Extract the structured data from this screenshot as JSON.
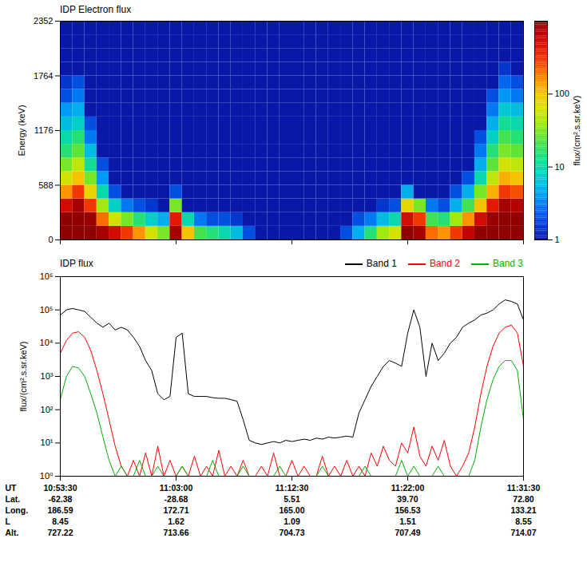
{
  "chart_data": [
    {
      "type": "heatmap",
      "title": "IDP Electron flux",
      "ylabel": "Energy (keV)",
      "xlim": [
        "10:53:30",
        "11:31:30"
      ],
      "xticks": [
        "10:53:30",
        "11:03:00",
        "11:12:30",
        "11:22:00",
        "11:31:30"
      ],
      "ylim": [
        0,
        2352
      ],
      "yticks": [
        0,
        588,
        1176,
        1764,
        2352
      ],
      "tick_labels": "y",
      "x_bins": [
        "10:53:30",
        "10:54:30",
        "10:55:30",
        "10:56:30",
        "10:57:30",
        "10:58:30",
        "10:59:30",
        "11:00:30",
        "11:01:30",
        "11:02:30",
        "11:03:30",
        "11:04:30",
        "11:05:30",
        "11:06:30",
        "11:07:30",
        "11:08:30",
        "11:09:30",
        "11:10:30",
        "11:11:30",
        "11:12:30",
        "11:13:30",
        "11:14:30",
        "11:15:30",
        "11:16:30",
        "11:17:30",
        "11:18:30",
        "11:19:30",
        "11:20:30",
        "11:21:30",
        "11:22:30",
        "11:23:30",
        "11:24:30",
        "11:25:30",
        "11:26:30",
        "11:27:30",
        "11:28:30",
        "11:29:30",
        "11:30:30",
        "11:31:30"
      ],
      "y_bins": [
        0,
        147,
        294,
        441,
        588,
        735,
        882,
        1029,
        1176,
        1323,
        1470,
        1617,
        1764,
        1911,
        2058,
        2205,
        2352
      ],
      "cells": [
        [
          1000,
          1000,
          500,
          150,
          60,
          30,
          15,
          10,
          6,
          4,
          2,
          1.5,
          1,
          1,
          1,
          1
        ],
        [
          1000,
          1000,
          800,
          300,
          100,
          50,
          25,
          15,
          8,
          5,
          3,
          2,
          1,
          1,
          1,
          1
        ],
        [
          1000,
          900,
          300,
          80,
          30,
          12,
          6,
          3,
          2,
          1,
          1,
          1,
          1,
          1,
          1,
          1
        ],
        [
          800,
          200,
          40,
          10,
          4,
          2,
          1,
          1,
          1,
          1,
          1,
          1,
          1,
          1,
          1,
          1
        ],
        [
          500,
          60,
          8,
          2,
          1,
          1,
          1,
          1,
          1,
          1,
          1,
          1,
          1,
          1,
          1,
          1
        ],
        [
          300,
          30,
          3,
          1,
          1,
          1,
          1,
          1,
          1,
          1,
          1,
          1,
          1,
          1,
          1,
          1
        ],
        [
          150,
          15,
          2,
          1,
          1,
          1,
          1,
          1,
          1,
          1,
          1,
          1,
          1,
          1,
          1,
          1
        ],
        [
          60,
          8,
          1.5,
          1,
          1,
          1,
          1,
          1,
          1,
          1,
          1,
          1,
          1,
          1,
          1,
          1
        ],
        [
          30,
          5,
          1,
          1,
          1,
          1,
          1,
          1,
          1,
          1,
          1,
          1,
          1,
          1,
          1,
          1
        ],
        [
          800,
          400,
          30,
          2,
          1,
          1,
          1,
          1,
          1,
          1,
          1,
          1,
          1,
          1,
          1,
          1
        ],
        [
          100,
          10,
          1,
          1,
          1,
          1,
          1,
          1,
          1,
          1,
          1,
          1,
          1,
          1,
          1,
          1
        ],
        [
          20,
          3,
          1,
          1,
          1,
          1,
          1,
          1,
          1,
          1,
          1,
          1,
          1,
          1,
          1,
          1
        ],
        [
          15,
          2,
          1,
          1,
          1,
          1,
          1,
          1,
          1,
          1,
          1,
          1,
          1,
          1,
          1,
          1
        ],
        [
          10,
          2,
          1,
          1,
          1,
          1,
          1,
          1,
          1,
          1,
          1,
          1,
          1,
          1,
          1,
          1
        ],
        [
          6,
          1.5,
          1,
          1,
          1,
          1,
          1,
          1,
          1,
          1,
          1,
          1,
          1,
          1,
          1,
          1
        ],
        [
          2,
          1,
          1,
          1,
          1,
          1,
          1,
          1,
          1,
          1,
          1,
          1,
          1,
          1,
          1,
          1
        ],
        [
          1,
          1,
          1,
          1,
          1,
          1,
          1,
          1,
          1,
          1,
          1,
          1,
          1,
          1,
          1,
          1
        ],
        [
          1,
          1,
          1,
          1,
          1,
          1,
          1,
          1,
          1,
          1,
          1,
          1,
          1,
          1,
          1,
          1
        ],
        [
          1,
          1,
          1,
          1,
          1,
          1,
          1,
          1,
          1,
          1,
          1,
          1,
          1,
          1,
          1,
          1
        ],
        [
          1,
          1,
          1,
          1,
          1,
          1,
          1,
          1,
          1,
          1,
          1,
          1,
          1,
          1,
          1,
          1
        ],
        [
          1,
          1,
          1,
          1,
          1,
          1,
          1,
          1,
          1,
          1,
          1,
          1,
          1,
          1,
          1,
          1
        ],
        [
          1,
          1,
          1,
          1,
          1,
          1,
          1,
          1,
          1,
          1,
          1,
          1,
          1,
          1,
          1,
          1
        ],
        [
          1,
          1,
          1,
          1,
          1,
          1,
          1,
          1,
          1,
          1,
          1,
          1,
          1,
          1,
          1,
          1
        ],
        [
          2,
          1,
          1,
          1,
          1,
          1,
          1,
          1,
          1,
          1,
          1,
          1,
          1,
          1,
          1,
          1
        ],
        [
          5,
          2,
          1,
          1,
          1,
          1,
          1,
          1,
          1,
          1,
          1,
          1,
          1,
          1,
          1,
          1
        ],
        [
          15,
          3,
          1,
          1,
          1,
          1,
          1,
          1,
          1,
          1,
          1,
          1,
          1,
          1,
          1,
          1
        ],
        [
          40,
          6,
          1.5,
          1,
          1,
          1,
          1,
          1,
          1,
          1,
          1,
          1,
          1,
          1,
          1,
          1
        ],
        [
          60,
          10,
          2,
          1,
          1,
          1,
          1,
          1,
          1,
          1,
          1,
          1,
          1,
          1,
          1,
          1
        ],
        [
          1000,
          500,
          80,
          5,
          1,
          1,
          1,
          1,
          1,
          1,
          1,
          1,
          1,
          1,
          1,
          1
        ],
        [
          800,
          300,
          30,
          1,
          1,
          1,
          1,
          1,
          1,
          1,
          1,
          1,
          1,
          1,
          1,
          1
        ],
        [
          200,
          20,
          3,
          1,
          1,
          1,
          1,
          1,
          1,
          1,
          1,
          1,
          1,
          1,
          1,
          1
        ],
        [
          150,
          15,
          2,
          1,
          1,
          1,
          1,
          1,
          1,
          1,
          1,
          1,
          1,
          1,
          1,
          1
        ],
        [
          300,
          40,
          5,
          2,
          1,
          1,
          1,
          1,
          1,
          1,
          1,
          1,
          1,
          1,
          1,
          1
        ],
        [
          600,
          150,
          20,
          5,
          2,
          1,
          1,
          1,
          1,
          1,
          1,
          1,
          1,
          1,
          1,
          1
        ],
        [
          1000,
          500,
          100,
          30,
          10,
          5,
          3,
          2,
          1,
          1,
          1,
          1,
          1,
          1,
          1,
          1
        ],
        [
          1000,
          900,
          400,
          120,
          50,
          25,
          15,
          8,
          5,
          3,
          2,
          1,
          1,
          1,
          1,
          1
        ],
        [
          1000,
          1000,
          800,
          300,
          120,
          60,
          30,
          20,
          12,
          7,
          4,
          2.5,
          1.5,
          1,
          1,
          1
        ],
        [
          1000,
          1000,
          700,
          250,
          100,
          50,
          25,
          15,
          10,
          6,
          3,
          2,
          1,
          1,
          1,
          1
        ]
      ],
      "colorbar": {
        "range": [
          1,
          1000
        ],
        "ticks": [
          1,
          10,
          100
        ],
        "label": "flux/(cm².s.sr.keV)"
      }
    },
    {
      "type": "line",
      "title": "IDP flux",
      "ylabel": "flux/(cm².s.sr.keV)",
      "xlabel": "UT",
      "log": "y",
      "legend": "top-right",
      "xlim": [
        "10:53:30",
        "11:31:30"
      ],
      "xticks": [
        "10:53:30",
        "11:03:00",
        "11:12:30",
        "11:22:00",
        "11:31:30"
      ],
      "ylim": [
        1,
        1000000
      ],
      "yticks": [
        {
          "value": 1,
          "label": "10⁰"
        },
        {
          "value": 10,
          "label": "10¹"
        },
        {
          "value": 100,
          "label": "10²"
        },
        {
          "value": 1000,
          "label": "10³"
        },
        {
          "value": 10000,
          "label": "10⁴"
        },
        {
          "value": 100000,
          "label": "10⁵"
        },
        {
          "value": 1000000,
          "label": "10⁶"
        }
      ],
      "tick_rows": [
        {
          "label": "Lat.",
          "values": [
            "-62.38",
            "-28.68",
            "5.51",
            "39.70",
            "72.80"
          ]
        },
        {
          "label": "Long.",
          "values": [
            "186.59",
            "172.71",
            "165.00",
            "156.53",
            "133.21"
          ]
        },
        {
          "label": "L",
          "values": [
            "8.45",
            "1.62",
            "1.09",
            "1.51",
            "8.55"
          ]
        },
        {
          "label": "Alt.",
          "values": [
            "727.22",
            "713.66",
            "704.73",
            "707.49",
            "714.07"
          ]
        }
      ],
      "x": [
        "10:53:30",
        "10:54:00",
        "10:54:30",
        "10:55:00",
        "10:55:30",
        "10:56:00",
        "10:56:30",
        "10:57:00",
        "10:57:30",
        "10:58:00",
        "10:58:30",
        "10:59:00",
        "10:59:30",
        "11:00:00",
        "11:00:30",
        "11:01:00",
        "11:01:30",
        "11:02:00",
        "11:02:30",
        "11:03:00",
        "11:03:30",
        "11:04:00",
        "11:04:30",
        "11:05:00",
        "11:05:30",
        "11:06:00",
        "11:06:30",
        "11:07:00",
        "11:07:30",
        "11:08:00",
        "11:08:30",
        "11:09:00",
        "11:09:30",
        "11:10:00",
        "11:10:30",
        "11:11:00",
        "11:11:30",
        "11:12:00",
        "11:12:30",
        "11:13:00",
        "11:13:30",
        "11:14:00",
        "11:14:30",
        "11:15:00",
        "11:15:30",
        "11:16:00",
        "11:16:30",
        "11:17:00",
        "11:17:30",
        "11:18:00",
        "11:18:30",
        "11:19:00",
        "11:19:30",
        "11:20:00",
        "11:20:30",
        "11:21:00",
        "11:21:30",
        "11:22:00",
        "11:22:30",
        "11:23:00",
        "11:23:30",
        "11:24:00",
        "11:24:30",
        "11:25:00",
        "11:25:30",
        "11:26:00",
        "11:26:30",
        "11:27:00",
        "11:27:30",
        "11:28:00",
        "11:28:30",
        "11:29:00",
        "11:29:30",
        "11:30:00",
        "11:30:30",
        "11:31:00",
        "11:31:30"
      ],
      "series": [
        {
          "name": "Band 1",
          "color": "#000000",
          "values": [
            70000,
            100000,
            110000,
            100000,
            90000,
            60000,
            40000,
            30000,
            40000,
            25000,
            30000,
            25000,
            15000,
            8000,
            3000,
            1500,
            300,
            200,
            250,
            15000,
            20000,
            300,
            250,
            250,
            250,
            230,
            220,
            220,
            200,
            180,
            50,
            12,
            10,
            9,
            10,
            11,
            10,
            12,
            11,
            12,
            13,
            12,
            14,
            13,
            15,
            14,
            15,
            16,
            15,
            80,
            200,
            500,
            1000,
            2000,
            3000,
            2500,
            2000,
            20000,
            100000,
            30000,
            1000,
            10000,
            3000,
            5000,
            10000,
            15000,
            30000,
            40000,
            50000,
            70000,
            80000,
            100000,
            150000,
            200000,
            180000,
            150000,
            50000
          ]
        },
        {
          "name": "Band 2",
          "color": "#ff0000",
          "values": [
            5000,
            12000,
            20000,
            22000,
            15000,
            6000,
            1500,
            300,
            50,
            8,
            2,
            1,
            3,
            1,
            5,
            1,
            8,
            1,
            3,
            1,
            2,
            1,
            4,
            1,
            2,
            1,
            6,
            1,
            2,
            1,
            3,
            1,
            1,
            2,
            1,
            5,
            1,
            1,
            3,
            1,
            2,
            1,
            1,
            4,
            1,
            2,
            1,
            3,
            1,
            2,
            1,
            5,
            2,
            8,
            3,
            2,
            10,
            5,
            30,
            4,
            2,
            8,
            3,
            12,
            2,
            1,
            2,
            5,
            30,
            300,
            2000,
            8000,
            20000,
            30000,
            35000,
            20000,
            2000
          ]
        },
        {
          "name": "Band 3",
          "color": "#00b000",
          "values": [
            200,
            1000,
            2000,
            1800,
            1000,
            300,
            80,
            15,
            3,
            1,
            2,
            1,
            1,
            3,
            1,
            1,
            2,
            1,
            1,
            1,
            2,
            1,
            1,
            1,
            1,
            3,
            1,
            1,
            1,
            1,
            2,
            1,
            1,
            1,
            1,
            1,
            2,
            1,
            1,
            1,
            1,
            1,
            1,
            2,
            1,
            1,
            1,
            1,
            1,
            1,
            2,
            1,
            1,
            1,
            1,
            1,
            3,
            1,
            2,
            1,
            1,
            1,
            2,
            1,
            1,
            1,
            1,
            1,
            3,
            30,
            200,
            800,
            2000,
            3000,
            3000,
            1500,
            50
          ]
        }
      ]
    }
  ]
}
